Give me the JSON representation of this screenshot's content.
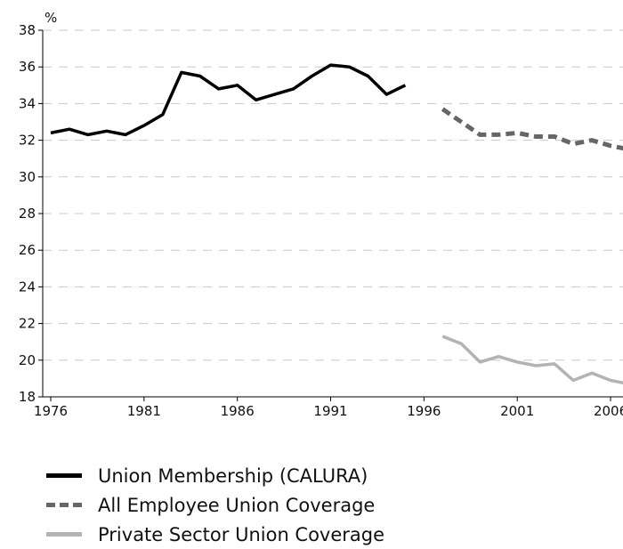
{
  "chart_data": {
    "type": "line",
    "title": "",
    "xlabel": "",
    "ylabel": "%",
    "xlim": [
      1976,
      2008
    ],
    "ylim": [
      18,
      38
    ],
    "x_ticks": [
      1976,
      1981,
      1986,
      1991,
      1996,
      2001,
      2006
    ],
    "y_ticks": [
      18,
      20,
      22,
      24,
      26,
      28,
      30,
      32,
      34,
      36,
      38
    ],
    "grid": "horizontal dashed",
    "legend_position": "bottom",
    "series": [
      {
        "name": "Union Membership (CALURA)",
        "color": "#000000",
        "style": "solid",
        "x": [
          1976,
          1977,
          1978,
          1979,
          1980,
          1981,
          1982,
          1983,
          1984,
          1985,
          1986,
          1987,
          1988,
          1989,
          1990,
          1991,
          1992,
          1993,
          1994,
          1995
        ],
        "y": [
          32.4,
          32.6,
          32.3,
          32.5,
          32.3,
          32.8,
          33.4,
          35.7,
          35.5,
          34.8,
          35.0,
          34.2,
          34.5,
          34.8,
          35.5,
          36.1,
          36.0,
          35.5,
          34.5,
          35.0
        ]
      },
      {
        "name": "All Employee Union Coverage",
        "color": "#666666",
        "style": "dashed",
        "x": [
          1997,
          1998,
          1999,
          2000,
          2001,
          2002,
          2003,
          2004,
          2005,
          2006,
          2007
        ],
        "y": [
          33.7,
          33.0,
          32.3,
          32.3,
          32.4,
          32.2,
          32.2,
          31.8,
          32.0,
          31.7,
          31.5
        ]
      },
      {
        "name": "Private Sector Union Coverage",
        "color": "#b3b3b3",
        "style": "solid",
        "x": [
          1997,
          1998,
          1999,
          2000,
          2001,
          2002,
          2003,
          2004,
          2005,
          2006,
          2007
        ],
        "y": [
          21.3,
          20.9,
          19.9,
          20.2,
          19.9,
          19.7,
          19.8,
          18.9,
          19.3,
          18.9,
          18.7
        ]
      }
    ]
  }
}
